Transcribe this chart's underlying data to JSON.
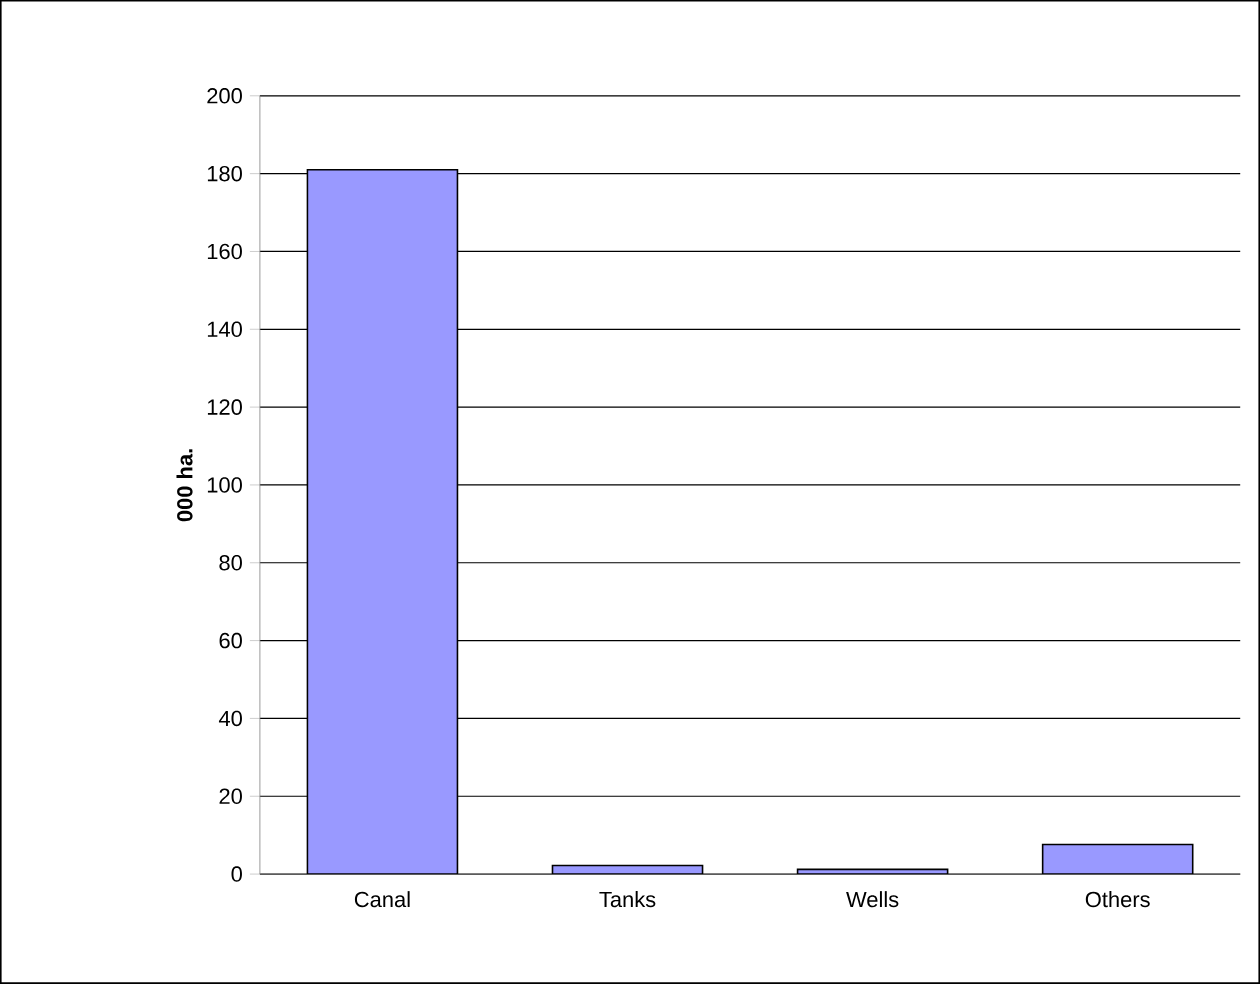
{
  "chart_data": {
    "type": "bar",
    "ylabel": "000 ha.",
    "categories": [
      "Canal",
      "Tanks",
      "Wells",
      "Others"
    ],
    "values": [
      181,
      2.2,
      1.2,
      7.6
    ],
    "color": "#9999ff",
    "ylim": [
      0,
      200
    ],
    "yticks": [
      0,
      20,
      40,
      60,
      80,
      100,
      120,
      140,
      160,
      180,
      200
    ],
    "grid": "y"
  }
}
